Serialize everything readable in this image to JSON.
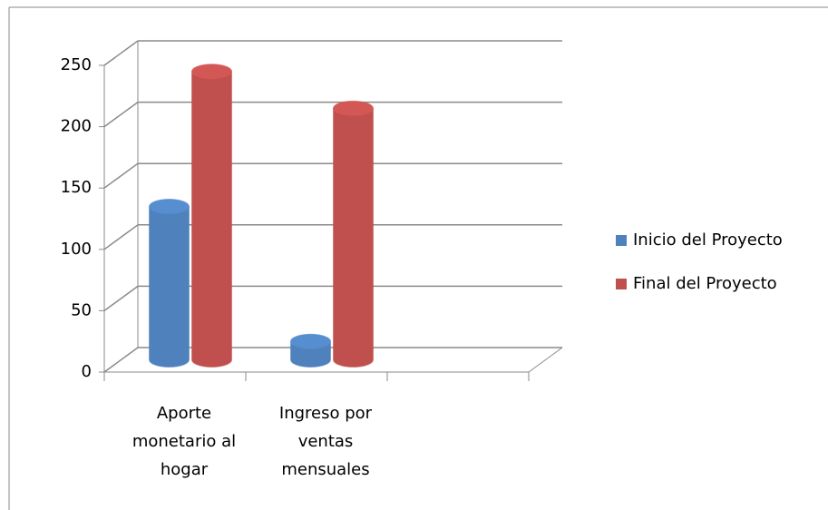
{
  "chart_data": {
    "type": "bar",
    "categories": [
      "Aporte monetario al hogar",
      "Ingreso por ventas mensuales",
      null
    ],
    "series": [
      {
        "name": "Inicio del Proyecto",
        "color": "#4f81bd",
        "values": [
          125,
          15,
          null
        ]
      },
      {
        "name": "Final del Proyecto",
        "color": "#c0504d",
        "values": [
          235,
          205,
          null
        ]
      }
    ],
    "ylim": [
      0,
      250
    ],
    "yticks": [
      0,
      50,
      100,
      150,
      200,
      250
    ],
    "grid": true,
    "legend": "right"
  }
}
